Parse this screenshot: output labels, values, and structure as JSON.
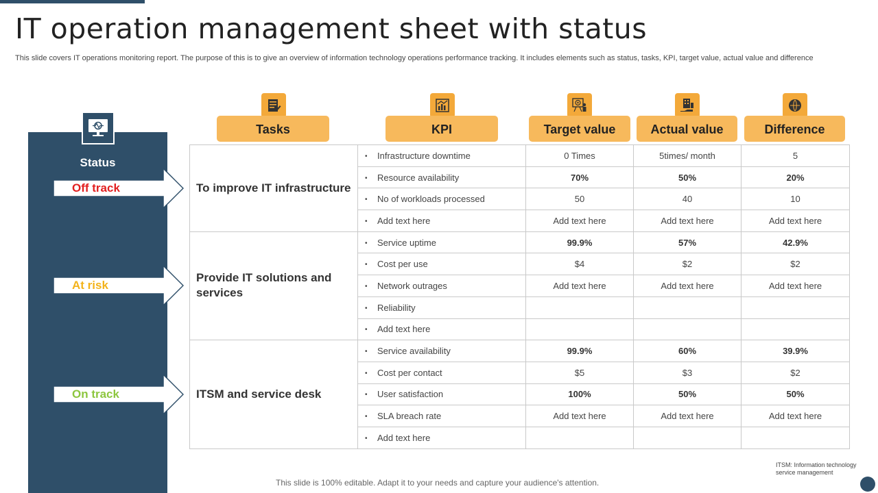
{
  "title": "IT operation management sheet with status",
  "subtitle": "This slide covers IT operations monitoring report. The purpose of this is to give an overview of information technology operations performance tracking. It includes elements such as status, tasks, KPI, target value, actual value and difference",
  "status": {
    "label": "Status",
    "items": [
      {
        "label": "Off track",
        "color": "#e21f1f"
      },
      {
        "label": "At risk",
        "color": "#f3b31b"
      },
      {
        "label": "On track",
        "color": "#8dc63f"
      }
    ]
  },
  "columns": {
    "tasks": "Tasks",
    "kpi": "KPI",
    "target": "Target value",
    "actual": "Actual value",
    "difference": "Difference"
  },
  "groups": [
    {
      "task": "To improve IT infrastructure",
      "rows": [
        {
          "kpi": "Infrastructure  downtime",
          "target": "0 Times",
          "actual": "5times/ month",
          "difference": "5",
          "bold": false
        },
        {
          "kpi": "Resource availability",
          "target": "70%",
          "actual": "50%",
          "difference": "20%",
          "bold": true
        },
        {
          "kpi": "No of workloads  processed",
          "target": "50",
          "actual": "40",
          "difference": "10",
          "bold": false
        },
        {
          "kpi": "Add text here",
          "target": "Add text here",
          "actual": "Add text here",
          "difference": "Add text here",
          "bold": false
        }
      ]
    },
    {
      "task": "Provide IT solutions and services",
      "rows": [
        {
          "kpi": "Service  uptime",
          "target": "99.9%",
          "actual": "57%",
          "difference": "42.9%",
          "bold": true
        },
        {
          "kpi": "Cost per use",
          "target": "$4",
          "actual": "$2",
          "difference": "$2",
          "bold": false
        },
        {
          "kpi": "Network outrages",
          "target": "Add text here",
          "actual": "Add text here",
          "difference": "Add text here",
          "bold": false
        },
        {
          "kpi": "Reliability",
          "target": "",
          "actual": "",
          "difference": "",
          "bold": false
        },
        {
          "kpi": "Add text here",
          "target": "",
          "actual": "",
          "difference": "",
          "bold": false
        }
      ]
    },
    {
      "task": "ITSM and service desk",
      "rows": [
        {
          "kpi": "Service  availability",
          "target": "99.9%",
          "actual": "60%",
          "difference": "39.9%",
          "bold": true
        },
        {
          "kpi": "Cost per contact",
          "target": "$5",
          "actual": "$3",
          "difference": "$2",
          "bold": false
        },
        {
          "kpi": "User satisfaction",
          "target": "100%",
          "actual": "50%",
          "difference": "50%",
          "bold": true
        },
        {
          "kpi": "SLA breach rate",
          "target": "Add text here",
          "actual": "Add text here",
          "difference": "Add text here",
          "bold": false
        },
        {
          "kpi": "Add text here",
          "target": "",
          "actual": "",
          "difference": "",
          "bold": false
        }
      ]
    }
  ],
  "footnote": "ITSM:  Information technology service management",
  "bottom_note": "This slide is 100% editable. Adapt it to your needs and capture your audience's attention.",
  "colors": {
    "navy": "#2f4f69",
    "accent": "#f7b95c",
    "accent_dark": "#f3a93a"
  }
}
